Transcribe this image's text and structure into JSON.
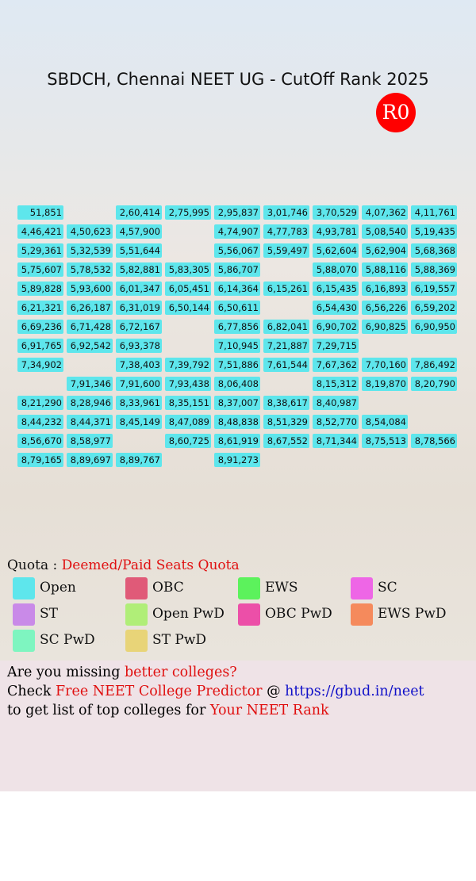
{
  "header": {
    "title": "SBDCH, Chennai NEET UG - CutOff Rank 2025",
    "round": "R0"
  },
  "grid": {
    "rows": [
      [
        "51,851",
        null,
        "2,60,414",
        "2,75,995",
        "2,95,837",
        "3,01,746",
        "3,70,529",
        "4,07,362",
        "4,11,761"
      ],
      [
        "4,46,421",
        "4,50,623",
        "4,57,900",
        null,
        "4,74,907",
        "4,77,783",
        "4,93,781",
        "5,08,540",
        "5,19,435"
      ],
      [
        "5,29,361",
        "5,32,539",
        "5,51,644",
        null,
        "5,56,067",
        "5,59,497",
        "5,62,604",
        "5,62,904",
        "5,68,368"
      ],
      [
        "5,75,607",
        "5,78,532",
        "5,82,881",
        "5,83,305",
        "5,86,707",
        null,
        "5,88,070",
        "5,88,116",
        "5,88,369"
      ],
      [
        "5,89,828",
        "5,93,600",
        "6,01,347",
        "6,05,451",
        "6,14,364",
        "6,15,261",
        "6,15,435",
        "6,16,893",
        "6,19,557"
      ],
      [
        "6,21,321",
        "6,26,187",
        "6,31,019",
        "6,50,144",
        "6,50,611",
        null,
        "6,54,430",
        "6,56,226",
        "6,59,202"
      ],
      [
        "6,69,236",
        "6,71,428",
        "6,72,167",
        null,
        "6,77,856",
        "6,82,041",
        "6,90,702",
        "6,90,825",
        "6,90,950"
      ],
      [
        "6,91,765",
        "6,92,542",
        "6,93,378",
        null,
        "7,10,945",
        "7,21,887",
        "7,29,715",
        null,
        null
      ],
      [
        "7,34,902",
        null,
        "7,38,403",
        "7,39,792",
        "7,51,886",
        "7,61,544",
        "7,67,362",
        "7,70,160",
        "7,86,492"
      ],
      [
        null,
        "7,91,346",
        "7,91,600",
        "7,93,438",
        "8,06,408",
        null,
        "8,15,312",
        "8,19,870",
        "8,20,790"
      ],
      [
        "8,21,290",
        "8,28,946",
        "8,33,961",
        "8,35,151",
        "8,37,007",
        "8,38,617",
        "8,40,987",
        null,
        null
      ],
      [
        "8,44,232",
        "8,44,371",
        "8,45,149",
        "8,47,089",
        "8,48,838",
        "8,51,329",
        "8,52,770",
        "8,54,084",
        null
      ],
      [
        "8,56,670",
        "8,58,977",
        null,
        "8,60,725",
        "8,61,919",
        "8,67,552",
        "8,71,344",
        "8,75,513",
        "8,78,566"
      ],
      [
        "8,79,165",
        "8,89,697",
        "8,89,767",
        null,
        "8,91,273",
        null,
        null,
        null,
        null
      ]
    ]
  },
  "legend": {
    "label": "Quota : ",
    "quota": "Deemed/Paid Seats Quota",
    "items": [
      {
        "name": "Open",
        "color": "#5ee6ec"
      },
      {
        "name": "OBC",
        "color": "#e05a78"
      },
      {
        "name": "EWS",
        "color": "#5cf25c"
      },
      {
        "name": "SC",
        "color": "#ee66e6"
      },
      {
        "name": "ST",
        "color": "#c98ae8"
      },
      {
        "name": "Open PwD",
        "color": "#b0ee78"
      },
      {
        "name": "OBC PwD",
        "color": "#ec4fa8"
      },
      {
        "name": "EWS PwD",
        "color": "#f58a5c"
      },
      {
        "name": "SC PwD",
        "color": "#7ef5c0"
      },
      {
        "name": "ST PwD",
        "color": "#e8d478"
      }
    ]
  },
  "footer": {
    "lines": [
      [
        {
          "text": "Are you missing ",
          "color": "#000000"
        },
        {
          "text": "better colleges?",
          "color": "#e01010"
        }
      ],
      [
        {
          "text": "Check ",
          "color": "#000000"
        },
        {
          "text": "Free NEET College Predictor",
          "color": "#e01010"
        },
        {
          "text": " @ ",
          "color": "#000000"
        },
        {
          "text": "https://gbud.in/neet",
          "color": "#1010c8"
        }
      ],
      [
        {
          "text": "to get list of top colleges for ",
          "color": "#000000"
        },
        {
          "text": "Your NEET Rank",
          "color": "#e01010"
        }
      ]
    ]
  }
}
